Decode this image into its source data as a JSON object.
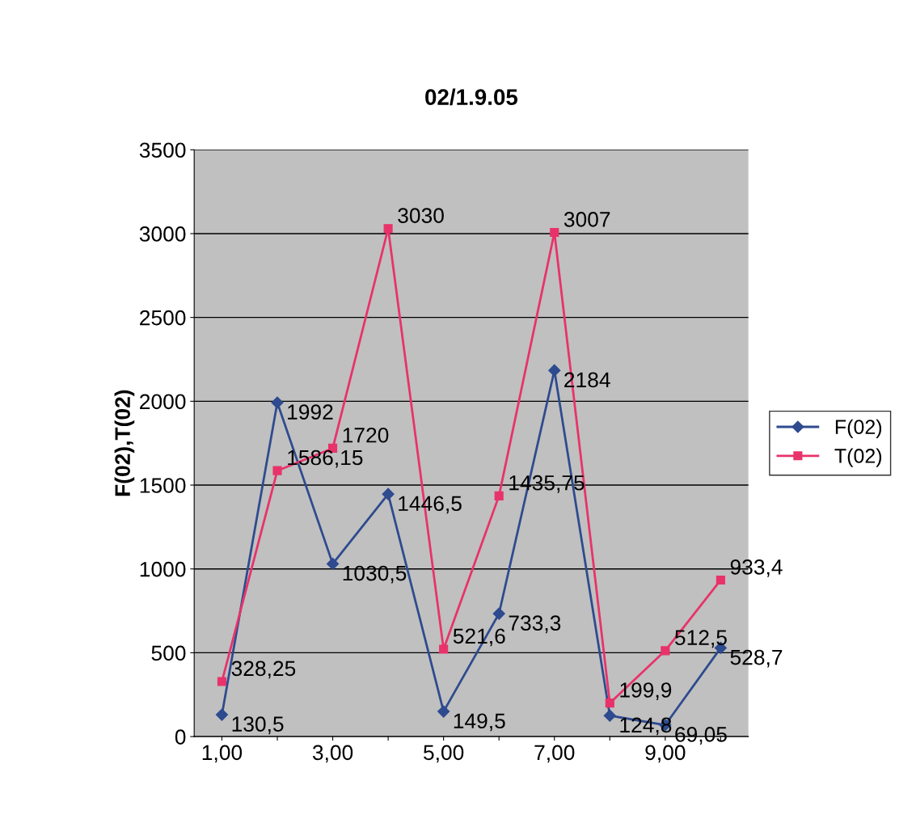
{
  "chart_data": {
    "type": "line",
    "title": "02/1.9.05",
    "ylabel": "F(02),T(02)",
    "categories": [
      "1,00",
      null,
      "3,00",
      null,
      "5,00",
      null,
      "7,00",
      null,
      "9,00",
      null
    ],
    "series": [
      {
        "name": "F(02)",
        "color": "#2f4b8f",
        "marker": "diamond",
        "values": [
          130.5,
          1992,
          1030.5,
          1446.5,
          149.5,
          733.3,
          2184,
          124.8,
          69.05,
          528.7
        ],
        "value_labels": [
          "130,5",
          "1992",
          "1030,5",
          "1446,5",
          "149,5",
          "733,3",
          "2184",
          "124,8",
          "69,05",
          "528,7"
        ]
      },
      {
        "name": "T(02)",
        "color": "#e8336a",
        "marker": "square",
        "values": [
          328.25,
          1586.15,
          1720,
          3030,
          521.6,
          1435.75,
          3007,
          199.9,
          512.5,
          933.4
        ],
        "value_labels": [
          "328,25",
          "1586,15",
          "1720",
          "3030",
          "521,6",
          "1435,75",
          "3007",
          "199,9",
          "512,5",
          "933,4"
        ]
      }
    ],
    "ylim": [
      0,
      3500
    ],
    "yticks": [
      0,
      500,
      1000,
      1500,
      2000,
      2500,
      3000,
      3500
    ],
    "grid": "y",
    "legend": "right"
  }
}
